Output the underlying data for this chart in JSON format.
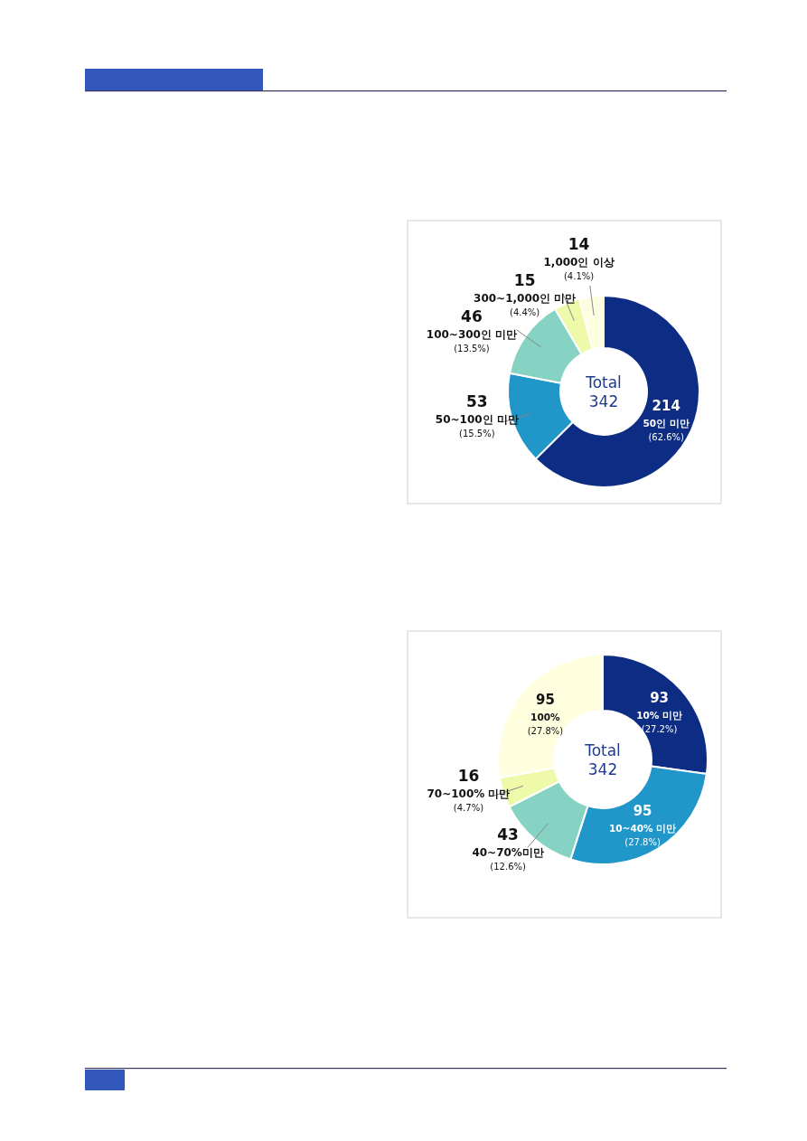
{
  "chart_data": [
    {
      "type": "donut",
      "categories": [
        "50인 미만",
        "50~100인 미만",
        "100~300인 미만",
        "300~1,000인 미만",
        "1,000인 이상"
      ],
      "values": [
        214,
        53,
        46,
        15,
        14
      ],
      "colors": [
        "#0d2c84",
        "#2196c8",
        "#86d3c3",
        "#eefaaa",
        "#fdfde0"
      ],
      "data_labels": true,
      "annotations": [
        "Total 342",
        {
          "text": "(62.6%)",
          "x": "50인 미만"
        },
        {
          "text": "(15.5%)",
          "x": "50~100인 미만"
        },
        {
          "text": "(13.5%)",
          "x": "100~300인 미만"
        },
        {
          "text": "(4.4%)",
          "x": "300~1,000인 미만"
        },
        {
          "text": "(4.1%)",
          "x": "1,000인 이상"
        }
      ]
    },
    {
      "type": "donut",
      "categories": [
        "10% 미만",
        "10~40% 미만",
        "40~70%미만",
        "70~100% 미만",
        "100%"
      ],
      "values": [
        93,
        95,
        43,
        16,
        95
      ],
      "colors": [
        "#0d2c84",
        "#2196c8",
        "#86d3c3",
        "#eefaaa",
        "#ffffe0"
      ],
      "data_labels": true,
      "annotations": [
        "Total 342",
        {
          "text": "(27.2%)",
          "x": "10% 미만"
        },
        {
          "text": "(27.8%)",
          "x": "10~40% 미만"
        },
        {
          "text": "(12.6%)",
          "x": "40~70%미만"
        },
        {
          "text": "(4.7%)",
          "x": "70~100% 미만"
        },
        {
          "text": "(27.8%)",
          "x": "100%"
        }
      ]
    }
  ]
}
